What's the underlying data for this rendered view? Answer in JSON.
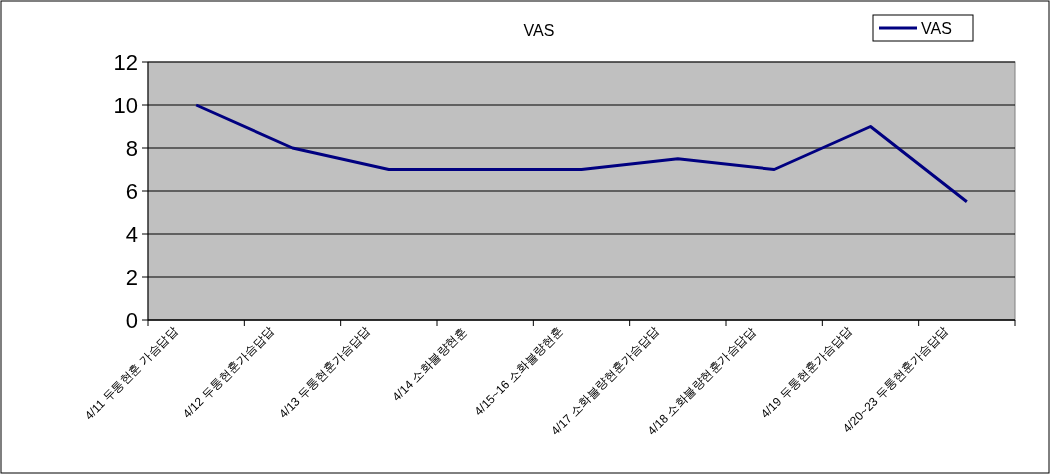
{
  "chart_data": {
    "type": "line",
    "title": "VAS",
    "categories": [
      "4/11 두통현훈 가슴답답",
      "4/12 두통현훈가슴답답",
      "4/13 두통현훈가슴답답",
      "4/14 소화불량현훈",
      "4/15~16 소화불량현훈",
      "4/17 소화불량현훈가슴답답",
      "4/18 소화불량현훈가슴답답",
      "4/19 두통현훈가슴답답",
      "4/20~23 두통현훈가슴답답"
    ],
    "series": [
      {
        "name": "VAS",
        "color": "#000080",
        "values": [
          10,
          8,
          7,
          7,
          7,
          7.5,
          7,
          9,
          5.5
        ]
      }
    ],
    "ylim": [
      0,
      12
    ],
    "yticks": [
      0,
      2,
      4,
      6,
      8,
      10,
      12
    ],
    "grid": "y",
    "legend": "top right",
    "marker": "none",
    "line_style": "solid"
  }
}
